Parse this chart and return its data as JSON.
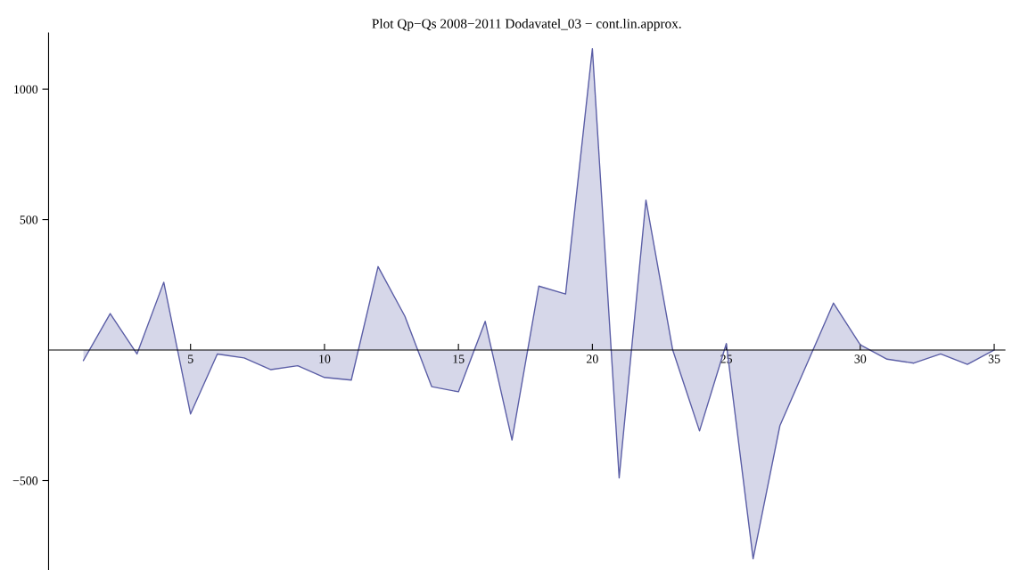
{
  "chart_data": {
    "type": "area",
    "title": "Plot Qp−Qs 2008−2011 Dodavatel_03 − cont.lin.approx.",
    "x": [
      1,
      2,
      3,
      4,
      5,
      6,
      7,
      8,
      9,
      10,
      11,
      12,
      13,
      14,
      15,
      16,
      17,
      18,
      19,
      20,
      21,
      22,
      23,
      24,
      25,
      26,
      27,
      28,
      29,
      30,
      31,
      32,
      33,
      34,
      35
    ],
    "series": [
      {
        "color": "#5b5ea6",
        "values": [
          -40,
          140,
          -15,
          260,
          -245,
          -15,
          -30,
          -75,
          -60,
          -105,
          -115,
          320,
          130,
          -140,
          -160,
          110,
          -345,
          245,
          215,
          1155,
          -490,
          575,
          0,
          -310,
          25,
          -800,
          -290,
          -55,
          180,
          20,
          -35,
          -50,
          -15,
          -55,
          0
        ]
      }
    ],
    "xlim": [
      -0.3,
      35.4
    ],
    "ylim": [
      -843,
      1215
    ],
    "xticks": [
      5,
      10,
      15,
      20,
      25,
      30,
      35
    ],
    "yticks": [
      -500,
      500,
      1000
    ],
    "grid": false,
    "legend": false,
    "marker": "none",
    "line_style": "solid"
  }
}
